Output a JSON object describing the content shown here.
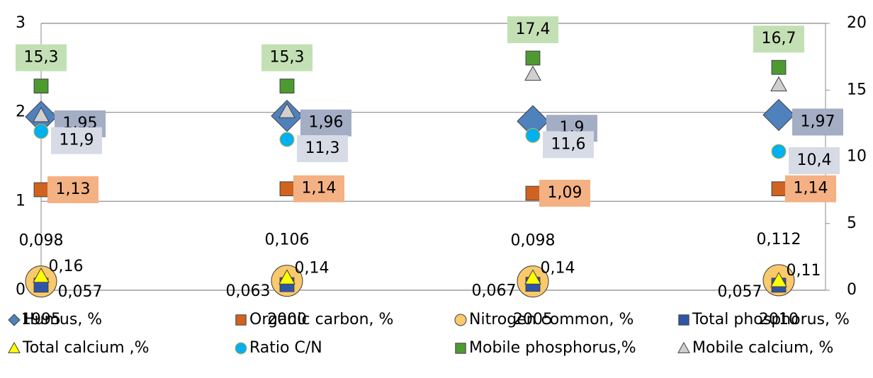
{
  "chart_data": {
    "type": "scatter",
    "categories": [
      "1995",
      "2000",
      "2005",
      "2010"
    ],
    "ylim": [
      0,
      3
    ],
    "yticks": [
      0,
      1,
      2,
      3
    ],
    "y2lim": [
      0,
      20
    ],
    "y2ticks": [
      0,
      5,
      10,
      15,
      20
    ],
    "grid": true,
    "series": [
      {
        "name": "Humus, %",
        "color": "#4f81bd",
        "marker": "diamond",
        "label_color": "#a3adc4",
        "values": [
          1.95,
          1.96,
          1.9,
          1.97
        ],
        "value_labels": [
          "1,95",
          "1,96",
          "1,9",
          "1,97"
        ]
      },
      {
        "name": "Organic carbon, %",
        "color": "#d0631f",
        "marker": "square",
        "label_color": "#f4b183",
        "values": [
          1.13,
          1.14,
          1.09,
          1.14
        ],
        "value_labels": [
          "1,13",
          "1,14",
          "1,09",
          "1,14"
        ]
      },
      {
        "name": "Nitrogen common, %",
        "color": "#f9c96b",
        "marker": "circle",
        "values": [
          0.098,
          0.106,
          0.098,
          0.112
        ],
        "value_labels": [
          "0,098",
          "0,106",
          "0,098",
          "0,112"
        ]
      },
      {
        "name": "Total phosphorus, %",
        "color": "#2f56a6",
        "marker": "square",
        "values": [
          0.057,
          0.063,
          0.067,
          0.057
        ],
        "value_labels": [
          "0,057",
          "0,063",
          "0,067",
          "0,057"
        ]
      },
      {
        "name": "Total calcium ,%",
        "color": "#ffff00",
        "marker": "triangle",
        "values": [
          0.16,
          0.14,
          0.14,
          0.11
        ],
        "value_labels": [
          "0,16",
          "0,14",
          "0,14",
          "0,11"
        ]
      },
      {
        "name": "Ratio  C/N",
        "color": "#00b0f0",
        "marker": "dot",
        "axis": "y2",
        "label_color": "#d6dbe6",
        "values": [
          11.9,
          11.3,
          11.6,
          10.4
        ],
        "value_labels": [
          "11,9",
          "11,3",
          "11,6",
          "10,4"
        ]
      },
      {
        "name": "Mobile phosphorus,%",
        "color": "#4e9a32",
        "marker": "square",
        "axis": "y2",
        "label_color": "#c3e0b4",
        "values": [
          15.3,
          15.3,
          17.4,
          16.7
        ],
        "value_labels": [
          "15,3",
          "15,3",
          "17,4",
          "16,7"
        ]
      },
      {
        "name": "Mobile calcium, %",
        "color": "#d0d0d0",
        "marker": "triangle",
        "axis": "y2",
        "values": [
          13.1,
          13.4,
          16.2,
          15.4
        ]
      }
    ]
  }
}
